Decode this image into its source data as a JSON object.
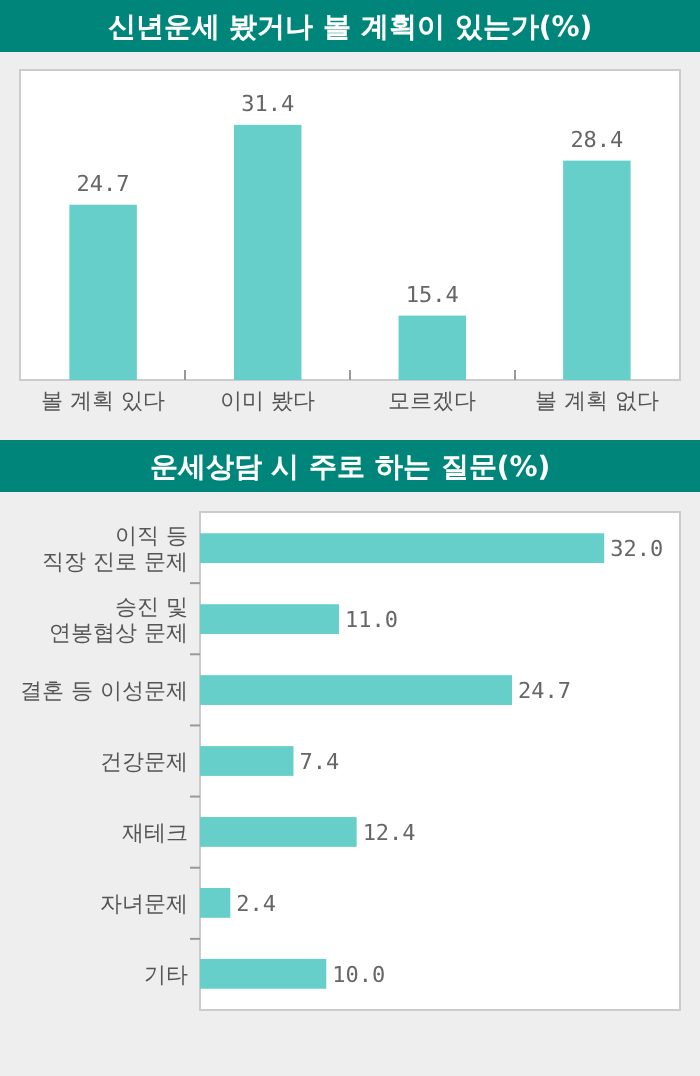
{
  "chart_data": [
    {
      "type": "bar",
      "title": "신년운세 봤거나 볼 계획이 있는가(%)",
      "categories": [
        "볼 계획 있다",
        "이미 봤다",
        "모르겠다",
        "볼 계획 없다"
      ],
      "values": [
        24.7,
        31.4,
        15.4,
        28.4
      ],
      "color": "#66cfc9",
      "ylim": [
        10,
        36
      ],
      "data_labels": true
    },
    {
      "type": "bar",
      "orientation": "horizontal",
      "title": "운세상담 시 주로 하는 질문(%)",
      "categories": [
        "이직 등\n직장 진로 문제",
        "승진 및\n연봉협상 문제",
        "결혼 등 이성문제",
        "건강문제",
        "재테크",
        "자녀문제",
        "기타"
      ],
      "values": [
        32.0,
        11.0,
        24.7,
        7.4,
        12.4,
        2.4,
        10.0
      ],
      "value_labels": [
        "32.0",
        "11.0",
        "24.7",
        "7.4",
        "12.4",
        "2.4",
        "10.0"
      ],
      "color": "#66cfc9",
      "xlim": [
        0,
        38
      ]
    }
  ]
}
